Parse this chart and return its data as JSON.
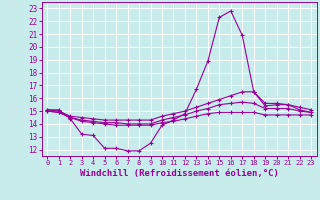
{
  "bg_color": "#c8ecec",
  "grid_color": "#b8d8d8",
  "line_color": "#990099",
  "marker_color": "#990099",
  "xlabel": "Windchill (Refroidissement éolien,°C)",
  "xlabel_fontsize": 6.5,
  "yticks": [
    12,
    13,
    14,
    15,
    16,
    17,
    18,
    19,
    20,
    21,
    22,
    23
  ],
  "xticks": [
    0,
    1,
    2,
    3,
    4,
    5,
    6,
    7,
    8,
    9,
    10,
    11,
    12,
    13,
    14,
    15,
    16,
    17,
    18,
    19,
    20,
    21,
    22,
    23
  ],
  "xlim": [
    -0.5,
    23.5
  ],
  "ylim": [
    11.5,
    23.5
  ],
  "series": [
    {
      "x": [
        0,
        1,
        2,
        3,
        4,
        5,
        6,
        7,
        8,
        9,
        10,
        11,
        12,
        13,
        14,
        15,
        16,
        17,
        18,
        19,
        20,
        21,
        22,
        23
      ],
      "y": [
        15.1,
        15.1,
        14.4,
        13.2,
        13.1,
        12.1,
        12.1,
        11.9,
        11.9,
        12.5,
        13.9,
        14.3,
        14.8,
        16.7,
        18.9,
        22.3,
        22.8,
        20.9,
        16.5,
        15.4,
        15.5,
        15.5,
        15.1,
        14.9
      ]
    },
    {
      "x": [
        0,
        1,
        2,
        3,
        4,
        5,
        6,
        7,
        8,
        9,
        10,
        11,
        12,
        13,
        14,
        15,
        16,
        17,
        18,
        19,
        20,
        21,
        22,
        23
      ],
      "y": [
        15.1,
        15.0,
        14.6,
        14.5,
        14.4,
        14.3,
        14.3,
        14.3,
        14.3,
        14.3,
        14.6,
        14.8,
        15.0,
        15.3,
        15.6,
        15.9,
        16.2,
        16.5,
        16.5,
        15.6,
        15.6,
        15.5,
        15.3,
        15.1
      ]
    },
    {
      "x": [
        0,
        1,
        2,
        3,
        4,
        5,
        6,
        7,
        8,
        9,
        10,
        11,
        12,
        13,
        14,
        15,
        16,
        17,
        18,
        19,
        20,
        21,
        22,
        23
      ],
      "y": [
        15.0,
        14.9,
        14.5,
        14.3,
        14.2,
        14.1,
        14.1,
        14.0,
        14.0,
        14.0,
        14.3,
        14.5,
        14.7,
        15.0,
        15.2,
        15.5,
        15.6,
        15.7,
        15.6,
        15.2,
        15.2,
        15.2,
        15.0,
        14.9
      ]
    },
    {
      "x": [
        0,
        1,
        2,
        3,
        4,
        5,
        6,
        7,
        8,
        9,
        10,
        11,
        12,
        13,
        14,
        15,
        16,
        17,
        18,
        19,
        20,
        21,
        22,
        23
      ],
      "y": [
        15.0,
        14.9,
        14.5,
        14.2,
        14.1,
        14.0,
        13.9,
        13.9,
        13.9,
        13.9,
        14.1,
        14.2,
        14.4,
        14.6,
        14.8,
        14.9,
        14.9,
        14.9,
        14.9,
        14.7,
        14.7,
        14.7,
        14.7,
        14.7
      ]
    }
  ]
}
